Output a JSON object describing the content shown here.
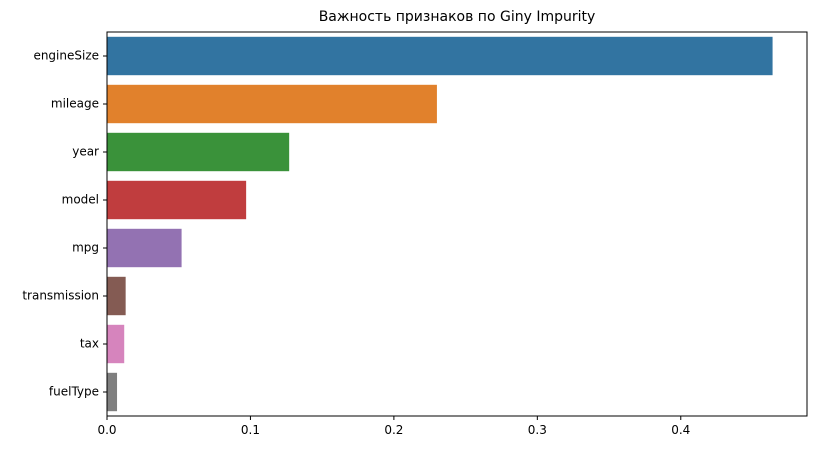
{
  "chart_data": {
    "type": "bar",
    "orientation": "horizontal",
    "title": "Важность признаков по Giny Impurity",
    "xlabel": "",
    "ylabel": "",
    "categories": [
      "engineSize",
      "mileage",
      "year",
      "model",
      "mpg",
      "transmission",
      "tax",
      "fuelType"
    ],
    "values": [
      0.464,
      0.23,
      0.127,
      0.097,
      0.052,
      0.013,
      0.012,
      0.007
    ],
    "colors": [
      "#3274a1",
      "#e1812c",
      "#3a923a",
      "#c03d3e",
      "#9372b2",
      "#845b53",
      "#d684bd",
      "#7f7f7f"
    ],
    "xlim": [
      0,
      0.488
    ],
    "xticks": [
      0.0,
      0.1,
      0.2,
      0.3,
      0.4
    ],
    "xtick_labels": [
      "0.0",
      "0.1",
      "0.2",
      "0.3",
      "0.4"
    ],
    "grid": false,
    "legend": "none"
  }
}
